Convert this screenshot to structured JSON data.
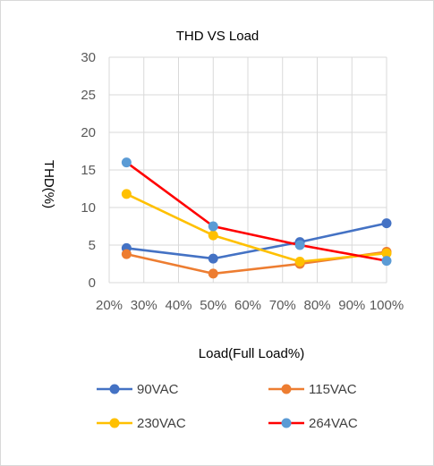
{
  "chart_data": {
    "type": "line",
    "title": "THD VS Load",
    "xlabel": "Load(Full Load%)",
    "ylabel": "THD(%)",
    "xlim": [
      20,
      100
    ],
    "ylim": [
      0,
      30
    ],
    "x_ticks": [
      "20%",
      "30%",
      "40%",
      "50%",
      "60%",
      "70%",
      "80%",
      "90%",
      "100%"
    ],
    "y_ticks": [
      "0",
      "5",
      "10",
      "15",
      "20",
      "25",
      "30"
    ],
    "grid": true,
    "legend_position": "bottom",
    "x": [
      25,
      50,
      75,
      100
    ],
    "series": [
      {
        "name": "90VAC",
        "color": "#4472c4",
        "values": [
          4.6,
          3.2,
          5.4,
          7.9
        ]
      },
      {
        "name": "115VAC",
        "color": "#ed7d31",
        "values": [
          3.8,
          1.2,
          2.5,
          4.1
        ]
      },
      {
        "name": "230VAC",
        "color": "#ffc000",
        "values": [
          11.8,
          6.3,
          2.8,
          3.9
        ]
      },
      {
        "name": "264VAC",
        "color": "#ff0000",
        "marker_color": "#5b9bd5",
        "values": [
          16.0,
          7.5,
          5.0,
          2.9
        ]
      }
    ]
  }
}
